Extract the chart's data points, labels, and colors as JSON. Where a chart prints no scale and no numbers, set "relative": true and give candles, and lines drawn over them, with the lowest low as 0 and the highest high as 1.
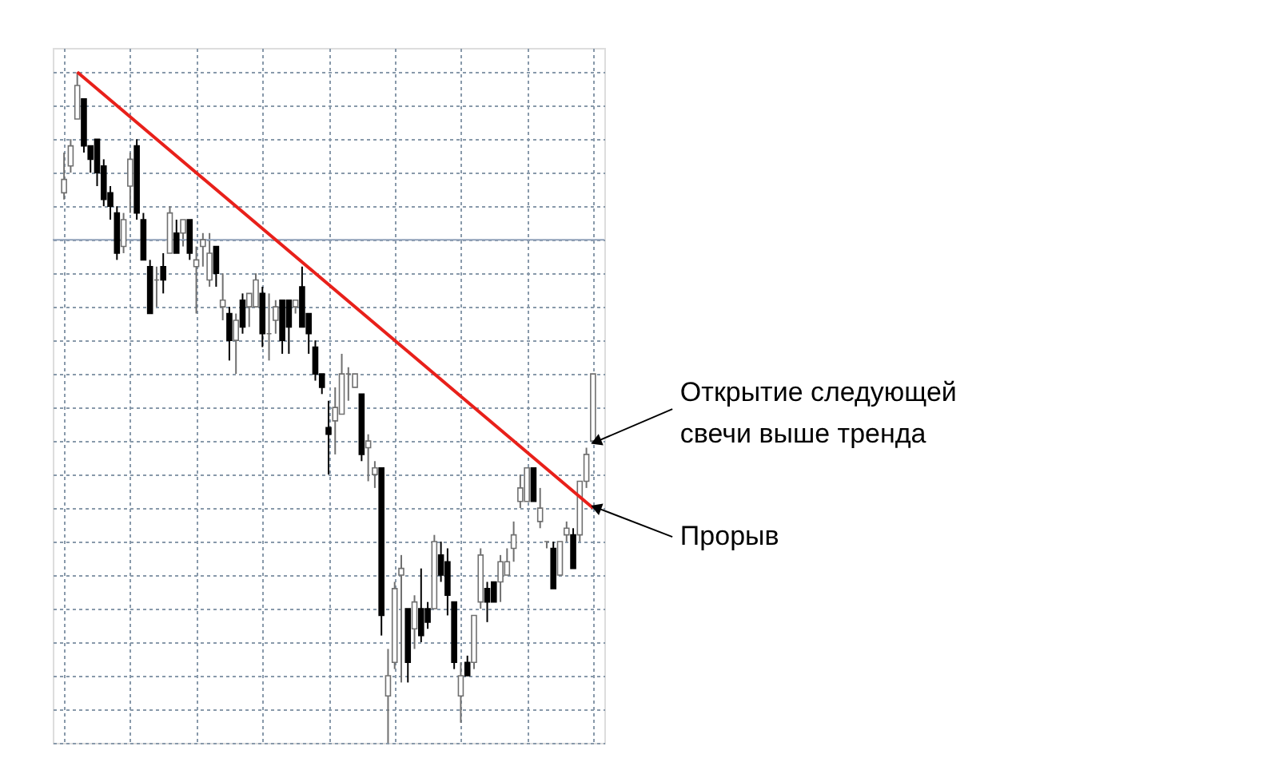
{
  "chart_data": {
    "type": "candlestick",
    "relative": true,
    "grid": true,
    "categories": [
      null,
      null,
      null,
      null,
      null,
      null,
      null,
      null,
      null,
      null,
      null,
      null,
      null,
      null,
      null,
      null,
      null,
      null,
      null,
      null,
      null,
      null,
      null,
      null,
      null,
      null,
      null,
      null,
      null,
      null,
      null,
      null,
      null,
      null,
      null,
      null,
      null,
      null,
      null,
      null,
      null,
      null,
      null,
      null,
      null,
      null,
      null,
      null,
      null,
      null,
      null,
      null,
      null,
      null,
      null,
      null,
      null,
      null,
      null,
      null,
      null,
      null,
      null,
      null,
      null,
      null,
      null,
      null,
      null,
      null,
      null,
      null,
      null,
      null,
      null,
      null,
      null,
      null,
      null,
      null,
      null
    ],
    "ohlc": [
      [
        0.82,
        0.88,
        0.81,
        0.84
      ],
      [
        0.86,
        0.9,
        0.85,
        0.89
      ],
      [
        0.93,
        1.0,
        0.93,
        0.98
      ],
      [
        0.96,
        0.96,
        0.88,
        0.89
      ],
      [
        0.89,
        0.89,
        0.85,
        0.87
      ],
      [
        0.9,
        0.9,
        0.83,
        0.85
      ],
      [
        0.86,
        0.87,
        0.8,
        0.81
      ],
      [
        0.82,
        0.83,
        0.78,
        0.8
      ],
      [
        0.79,
        0.8,
        0.72,
        0.73
      ],
      [
        0.74,
        0.79,
        0.73,
        0.78
      ],
      [
        0.83,
        0.88,
        0.79,
        0.87
      ],
      [
        0.89,
        0.9,
        0.78,
        0.79
      ],
      [
        0.78,
        0.79,
        0.72,
        0.72
      ],
      [
        0.71,
        0.72,
        0.64,
        0.64
      ],
      [
        0.69,
        0.71,
        0.65,
        0.69
      ],
      [
        0.71,
        0.73,
        0.67,
        0.69
      ],
      [
        0.73,
        0.8,
        0.73,
        0.79
      ],
      [
        0.76,
        0.78,
        0.73,
        0.73
      ],
      [
        0.76,
        0.78,
        0.74,
        0.78
      ],
      [
        0.78,
        0.78,
        0.72,
        0.73
      ],
      [
        0.71,
        0.74,
        0.64,
        0.72
      ],
      [
        0.74,
        0.76,
        0.71,
        0.75
      ],
      [
        0.69,
        0.76,
        0.68,
        0.73
      ],
      [
        0.74,
        0.74,
        0.68,
        0.7
      ],
      [
        0.65,
        0.7,
        0.63,
        0.66
      ],
      [
        0.64,
        0.65,
        0.57,
        0.6
      ],
      [
        0.6,
        0.64,
        0.55,
        0.63
      ],
      [
        0.66,
        0.67,
        0.61,
        0.62
      ],
      [
        0.65,
        0.67,
        0.62,
        0.67
      ],
      [
        0.65,
        0.7,
        0.65,
        0.69
      ],
      [
        0.67,
        0.68,
        0.59,
        0.61
      ],
      [
        0.61,
        0.67,
        0.57,
        0.61
      ],
      [
        0.63,
        0.66,
        0.61,
        0.65
      ],
      [
        0.66,
        0.66,
        0.58,
        0.6
      ],
      [
        0.66,
        0.66,
        0.58,
        0.62
      ],
      [
        0.65,
        0.66,
        0.64,
        0.66
      ],
      [
        0.68,
        0.71,
        0.62,
        0.62
      ],
      [
        0.64,
        0.64,
        0.58,
        0.61
      ],
      [
        0.59,
        0.6,
        0.54,
        0.55
      ],
      [
        0.55,
        0.55,
        0.52,
        0.53
      ],
      [
        0.47,
        0.51,
        0.4,
        0.46
      ],
      [
        0.48,
        0.53,
        0.43,
        0.5
      ],
      [
        0.49,
        0.58,
        0.49,
        0.55
      ],
      [
        0.55,
        0.56,
        0.51,
        0.55
      ],
      [
        0.53,
        0.55,
        0.53,
        0.55
      ],
      [
        0.52,
        0.52,
        0.42,
        0.43
      ],
      [
        0.44,
        0.46,
        0.39,
        0.45
      ],
      [
        0.4,
        0.42,
        0.38,
        0.41
      ],
      [
        0.41,
        0.41,
        0.16,
        0.19
      ],
      [
        0.07,
        0.14,
        0.0,
        0.1
      ],
      [
        0.12,
        0.24,
        0.11,
        0.23
      ],
      [
        0.25,
        0.28,
        0.09,
        0.26
      ],
      [
        0.2,
        0.2,
        0.09,
        0.12
      ],
      [
        0.17,
        0.22,
        0.14,
        0.21
      ],
      [
        0.2,
        0.26,
        0.15,
        0.16
      ],
      [
        0.2,
        0.21,
        0.17,
        0.18
      ],
      [
        0.2,
        0.31,
        0.2,
        0.3
      ],
      [
        0.28,
        0.3,
        0.24,
        0.25
      ],
      [
        0.27,
        0.29,
        0.19,
        0.22
      ],
      [
        0.21,
        0.21,
        0.11,
        0.12
      ],
      [
        0.07,
        0.12,
        0.03,
        0.1
      ],
      [
        0.12,
        0.13,
        0.1,
        0.1
      ],
      [
        0.12,
        0.19,
        0.11,
        0.19
      ],
      [
        0.21,
        0.29,
        0.2,
        0.28
      ],
      [
        0.23,
        0.24,
        0.18,
        0.21
      ],
      [
        0.24,
        0.24,
        0.21,
        0.21
      ],
      [
        0.24,
        0.28,
        0.21,
        0.27
      ],
      [
        0.25,
        0.29,
        0.25,
        0.27
      ],
      [
        0.29,
        0.33,
        0.27,
        0.31
      ],
      [
        0.36,
        0.4,
        0.35,
        0.38
      ],
      [
        0.36,
        0.41,
        0.36,
        0.41
      ],
      [
        0.41,
        0.41,
        0.36,
        0.36
      ],
      [
        0.33,
        0.38,
        0.32,
        0.35
      ],
      [
        0.3,
        0.3,
        0.29,
        0.3
      ],
      [
        0.29,
        0.3,
        0.23,
        0.23
      ],
      [
        0.25,
        0.3,
        0.25,
        0.3
      ],
      [
        0.31,
        0.33,
        0.3,
        0.32
      ],
      [
        0.31,
        0.32,
        0.26,
        0.26
      ],
      [
        0.31,
        0.39,
        0.3,
        0.39
      ],
      [
        0.39,
        0.44,
        0.38,
        0.43
      ],
      [
        0.45,
        0.55,
        0.45,
        0.55
      ]
    ],
    "series": [
      {
        "type": "line",
        "color": "#e8201a",
        "values": [
          null,
          null,
          1.0,
          null,
          null,
          null,
          null,
          null,
          null,
          null,
          null,
          null,
          null,
          null,
          null,
          null,
          null,
          null,
          null,
          null,
          null,
          null,
          null,
          null,
          null,
          null,
          null,
          null,
          null,
          null,
          null,
          null,
          null,
          null,
          null,
          null,
          null,
          null,
          null,
          null,
          null,
          null,
          null,
          null,
          null,
          null,
          null,
          null,
          null,
          null,
          null,
          null,
          null,
          null,
          null,
          null,
          null,
          null,
          null,
          null,
          null,
          null,
          null,
          null,
          null,
          null,
          null,
          null,
          null,
          null,
          null,
          null,
          null,
          null,
          null,
          null,
          null,
          null,
          null,
          null,
          0.35
        ]
      }
    ],
    "ref_lines": [
      {
        "axis": "y",
        "value": 0.75,
        "color": "#8fa0b8"
      }
    ],
    "annotations": [
      "Открытие следующей свечи выше тренда",
      "Прорыв"
    ]
  }
}
